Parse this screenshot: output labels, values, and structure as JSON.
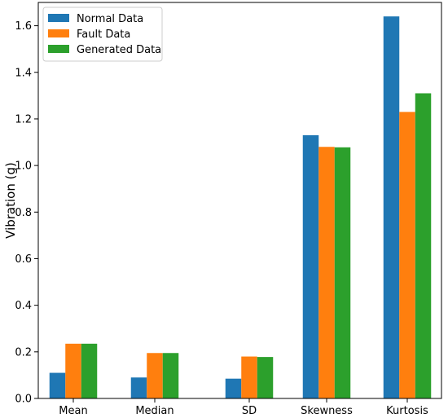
{
  "chart_data": {
    "type": "bar",
    "title": "",
    "xlabel": "",
    "ylabel": "Vibration (g)",
    "ylim": [
      0,
      1.7
    ],
    "yticks": [
      0.0,
      0.2,
      0.4,
      0.6,
      0.8,
      1.0,
      1.2,
      1.4,
      1.6
    ],
    "ytick_labels": [
      "0.0",
      "0.2",
      "0.4",
      "0.6",
      "0.8",
      "1.0",
      "1.2",
      "1.4",
      "1.6"
    ],
    "categories": [
      "Mean",
      "Median",
      "SD",
      "Skewness",
      "Kurtosis"
    ],
    "series": [
      {
        "name": "Normal Data",
        "color": "#1f77b4",
        "values": [
          0.11,
          0.09,
          0.085,
          1.13,
          1.64
        ]
      },
      {
        "name": "Fault Data",
        "color": "#ff7f0e",
        "values": [
          0.235,
          0.195,
          0.18,
          1.08,
          1.23
        ]
      },
      {
        "name": "Generated Data",
        "color": "#2ca02c",
        "values": [
          0.235,
          0.195,
          0.178,
          1.078,
          1.31
        ]
      }
    ],
    "legend_position": "top-left",
    "grid": false
  }
}
